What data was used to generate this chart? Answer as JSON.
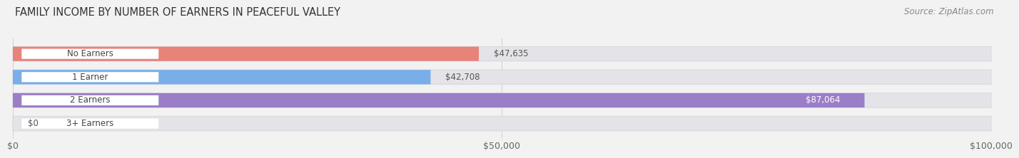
{
  "title": "FAMILY INCOME BY NUMBER OF EARNERS IN PEACEFUL VALLEY",
  "source": "Source: ZipAtlas.com",
  "categories": [
    "No Earners",
    "1 Earner",
    "2 Earners",
    "3+ Earners"
  ],
  "values": [
    47635,
    42708,
    87064,
    0
  ],
  "bar_colors": [
    "#e8837a",
    "#7aaee8",
    "#9b7ec8",
    "#6ecece"
  ],
  "value_labels": [
    "$47,635",
    "$42,708",
    "$87,064",
    "$0"
  ],
  "value_label_inside": [
    false,
    false,
    true,
    false
  ],
  "xlim": [
    0,
    100000
  ],
  "xticks": [
    0,
    50000,
    100000
  ],
  "xticklabels": [
    "$0",
    "$50,000",
    "$100,000"
  ],
  "background_color": "#f2f2f2",
  "bar_bg_color": "#e4e4e8",
  "bar_bg_outline": "#d8d8de",
  "title_fontsize": 10.5,
  "source_fontsize": 8.5,
  "tick_fontsize": 9,
  "label_fontsize": 8.5,
  "value_fontsize": 8.5
}
